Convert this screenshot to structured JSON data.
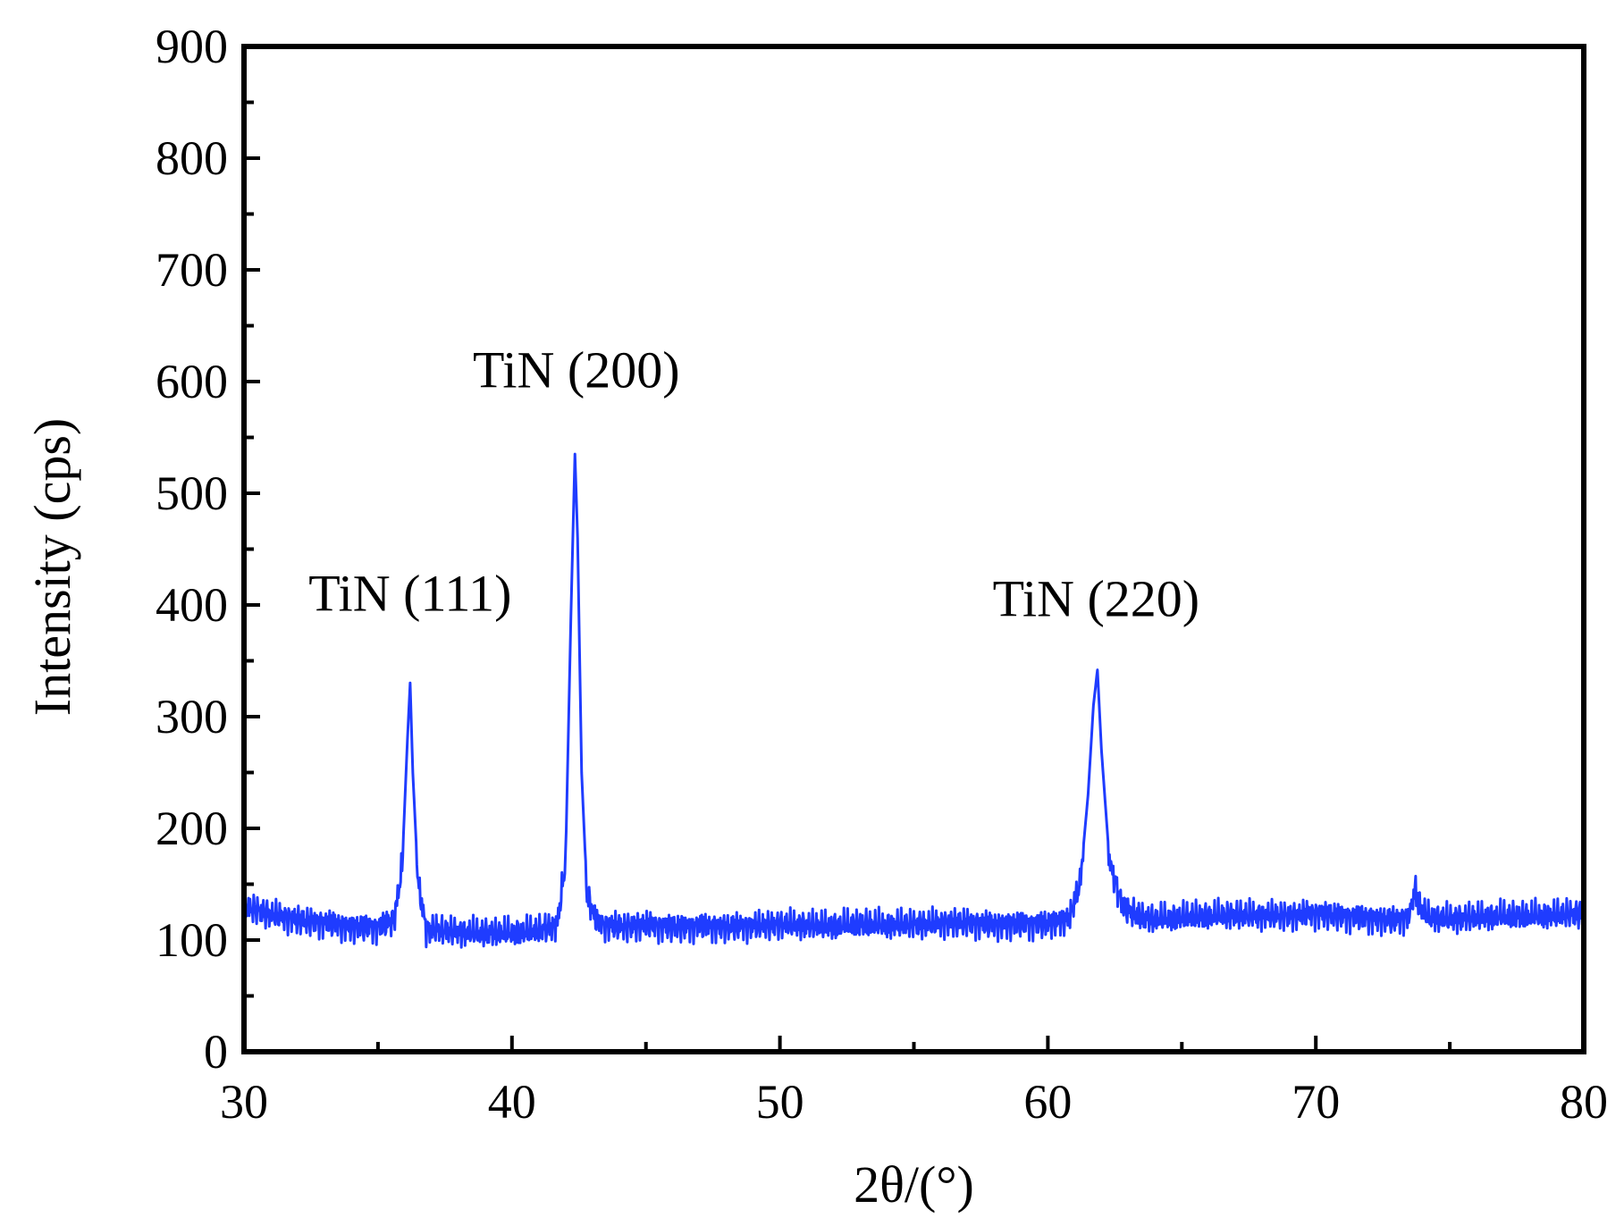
{
  "chart_data": {
    "type": "line",
    "title": "",
    "xlabel": "2θ/(°)",
    "ylabel": "Intensity (cps)",
    "xlim": [
      30,
      80
    ],
    "ylim": [
      0,
      900
    ],
    "x_ticks": [
      30,
      40,
      50,
      60,
      70,
      80
    ],
    "y_ticks": [
      0,
      100,
      200,
      300,
      400,
      500,
      600,
      700,
      800,
      900
    ],
    "x_tick_labels": [
      "30",
      "40",
      "50",
      "60",
      "70",
      "80"
    ],
    "y_tick_labels": [
      "0",
      "100",
      "200",
      "300",
      "400",
      "500",
      "600",
      "700",
      "800",
      "900"
    ],
    "grid": false,
    "legend": "none",
    "series": [
      {
        "color": "#1f3cff",
        "x": [
          30,
          31,
          32,
          33,
          34,
          35,
          35.6,
          35.9,
          36.1,
          36.2,
          36.3,
          36.5,
          36.8,
          37.5,
          38,
          39,
          40,
          41,
          41.7,
          42.0,
          42.2,
          42.35,
          42.45,
          42.6,
          42.8,
          43.2,
          44,
          45,
          46,
          47,
          48,
          49,
          50,
          51,
          52,
          53,
          54,
          55,
          56,
          57,
          58,
          59,
          60,
          60.8,
          61.2,
          61.5,
          61.7,
          61.85,
          62.0,
          62.3,
          62.8,
          63.5,
          64,
          65,
          66,
          67,
          68,
          69,
          70,
          71,
          72,
          73,
          73.5,
          73.7,
          73.9,
          74.2,
          75,
          76,
          77,
          78,
          79,
          80
        ],
        "y": [
          130,
          123,
          118,
          116,
          112,
          112,
          118,
          165,
          280,
          330,
          250,
          150,
          110,
          108,
          107,
          106,
          106,
          108,
          115,
          170,
          390,
          535,
          460,
          250,
          140,
          115,
          112,
          114,
          112,
          113,
          112,
          113,
          114,
          113,
          112,
          114,
          113,
          114,
          115,
          116,
          114,
          115,
          115,
          120,
          150,
          230,
          310,
          342,
          270,
          170,
          130,
          120,
          118,
          120,
          121,
          122,
          122,
          122,
          124,
          122,
          120,
          118,
          122,
          145,
          130,
          120,
          119,
          120,
          121,
          121,
          122,
          124
        ]
      }
    ],
    "annotations": [
      {
        "text": "TiN (111)",
        "x": 36.2,
        "y": 395
      },
      {
        "text": "TiN (200)",
        "x": 42.4,
        "y": 595
      },
      {
        "text": "TiN (220)",
        "x": 61.8,
        "y": 390
      }
    ]
  }
}
